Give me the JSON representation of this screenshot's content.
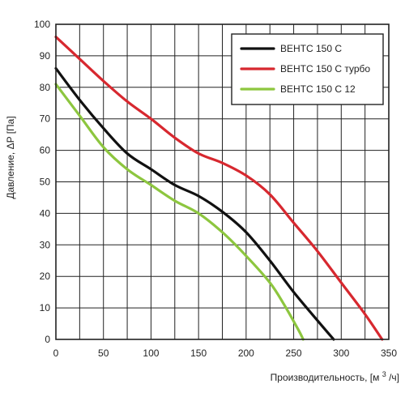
{
  "chart_data": {
    "type": "line",
    "xlabel": "Производительность, [м",
    "xlabel_sup": "3",
    "xlabel_tail": "/ч]",
    "ylabel": "Давление, ΔP [Па]",
    "xlim": [
      0,
      350
    ],
    "ylim": [
      0,
      100
    ],
    "x_ticks": [
      0,
      50,
      100,
      150,
      200,
      250,
      300,
      350
    ],
    "y_ticks": [
      0,
      10,
      20,
      30,
      40,
      50,
      60,
      70,
      80,
      90,
      100
    ],
    "x_tick_labels": [
      "0",
      "50",
      "100",
      "150",
      "200",
      "250",
      "300",
      "350"
    ],
    "y_tick_labels": [
      "0",
      "10",
      "20",
      "30",
      "40",
      "50",
      "60",
      "70",
      "80",
      "90",
      "100"
    ],
    "x_grid_step": 25,
    "y_grid_step": 10,
    "grid": true,
    "legend_position": "top-right",
    "series": [
      {
        "name": "ВЕНТС 150 С",
        "color": "#111111",
        "points": [
          [
            0,
            86
          ],
          [
            25,
            76
          ],
          [
            50,
            67
          ],
          [
            75,
            59
          ],
          [
            100,
            54
          ],
          [
            125,
            49
          ],
          [
            150,
            45.5
          ],
          [
            175,
            40.5
          ],
          [
            200,
            34
          ],
          [
            225,
            25
          ],
          [
            250,
            15
          ],
          [
            275,
            6
          ],
          [
            292,
            0
          ]
        ]
      },
      {
        "name": "ВЕНТС 150 С турбо",
        "color": "#d7282f",
        "points": [
          [
            0,
            96
          ],
          [
            25,
            89
          ],
          [
            50,
            82
          ],
          [
            75,
            75.5
          ],
          [
            100,
            70
          ],
          [
            125,
            64
          ],
          [
            150,
            59
          ],
          [
            175,
            56
          ],
          [
            200,
            52
          ],
          [
            225,
            46
          ],
          [
            250,
            37
          ],
          [
            275,
            28
          ],
          [
            300,
            18
          ],
          [
            325,
            8
          ],
          [
            343,
            0
          ]
        ]
      },
      {
        "name": "ВЕНТС 150 С 12",
        "color": "#8dc63f",
        "points": [
          [
            0,
            81
          ],
          [
            25,
            71
          ],
          [
            50,
            61
          ],
          [
            75,
            54
          ],
          [
            100,
            49
          ],
          [
            125,
            44
          ],
          [
            150,
            40
          ],
          [
            175,
            34
          ],
          [
            200,
            26.5
          ],
          [
            225,
            18
          ],
          [
            240,
            11
          ],
          [
            255,
            3
          ],
          [
            260,
            0
          ]
        ]
      }
    ]
  }
}
